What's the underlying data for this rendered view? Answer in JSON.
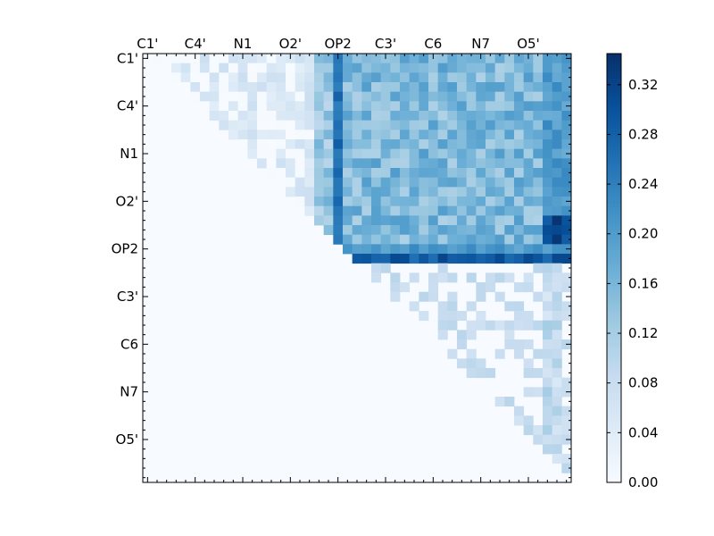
{
  "chart_data": {
    "type": "heatmap",
    "title": "",
    "xlabel": "",
    "ylabel": "",
    "n": 45,
    "x_tick_labels": [
      "C1'",
      "C4'",
      "N1",
      "O2'",
      "OP2",
      "C3'",
      "C6",
      "N7",
      "O5'"
    ],
    "y_tick_labels": [
      "C1'",
      "C4'",
      "N1",
      "O2'",
      "OP2",
      "C3'",
      "C6",
      "N7",
      "O5'"
    ],
    "tick_indices": [
      0,
      5,
      10,
      15,
      20,
      25,
      30,
      35,
      40
    ],
    "colorbar": {
      "ticks": [
        0.0,
        0.04,
        0.08,
        0.12,
        0.16,
        0.2,
        0.24,
        0.28,
        0.32
      ],
      "tick_labels": [
        "0.00",
        "0.04",
        "0.08",
        "0.12",
        "0.16",
        "0.20",
        "0.24",
        "0.28",
        "0.32"
      ],
      "range": [
        0.0,
        0.345
      ],
      "colormap": "Blues",
      "colors": [
        "#f7fbff",
        "#deebf7",
        "#c6dbef",
        "#9ecae1",
        "#6baed6",
        "#4292c6",
        "#2171b5",
        "#08519c",
        "#08306b"
      ]
    },
    "structure": "upper-triangular matrix; lower triangle and diagonal are 0",
    "features": {
      "strong_column_index": 20,
      "strong_column_value": 0.27,
      "strong_row_index": 21,
      "strong_row_value": 0.29,
      "block_rows_0_to_20_cols_21_to_44": "0.12-0.20",
      "peak_region_rows_19_to_21_cols_42_to_44": "0.30-0.345",
      "weak_region_rows_0_to_19_cols_0_to_19": "0.01-0.08",
      "lower_block_rows_22_to_44_cols_22_to_44": "0.00-0.12"
    }
  }
}
